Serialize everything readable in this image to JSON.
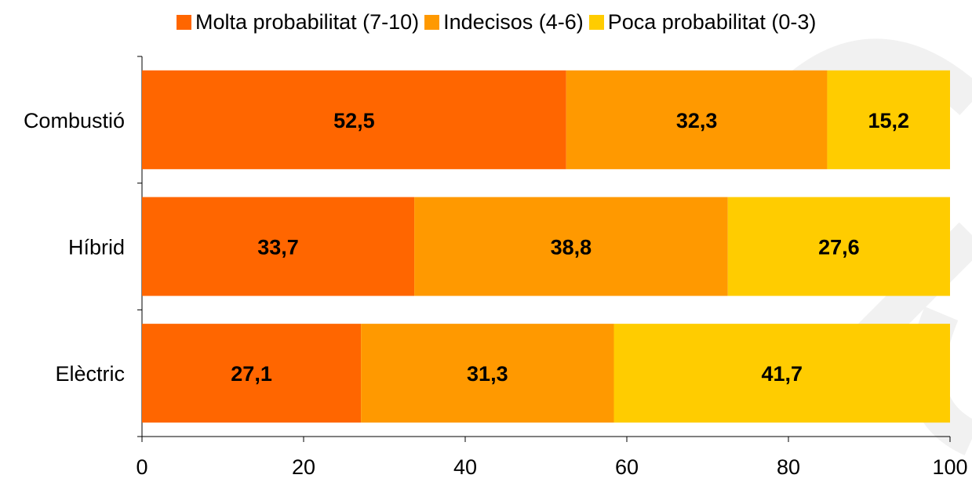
{
  "chart_data": {
    "type": "bar",
    "orientation": "horizontal",
    "stacked": true,
    "categories": [
      "Combustió",
      "Híbrid",
      "Elèctric"
    ],
    "series": [
      {
        "name": "Molta probabilitat (7-10)",
        "color": "#ff6600",
        "values": [
          52.5,
          33.7,
          27.1
        ],
        "labels": [
          "52,5",
          "33,7",
          "27,1"
        ]
      },
      {
        "name": "Indecisos (4-6)",
        "color": "#ff9900",
        "values": [
          32.3,
          38.8,
          31.3
        ],
        "labels": [
          "32,3",
          "38,8",
          "31,3"
        ]
      },
      {
        "name": "Poca probabilitat (0-3)",
        "color": "#ffcc00",
        "values": [
          15.2,
          27.6,
          41.7
        ],
        "labels": [
          "15,2",
          "27,6",
          "41,7"
        ]
      }
    ],
    "xlim": [
      0,
      100
    ],
    "xticks": [
      0,
      20,
      40,
      60,
      80,
      100
    ],
    "xtick_labels": [
      "0",
      "20",
      "40",
      "60",
      "80",
      "100"
    ],
    "legend_position": "top",
    "grid": false
  }
}
